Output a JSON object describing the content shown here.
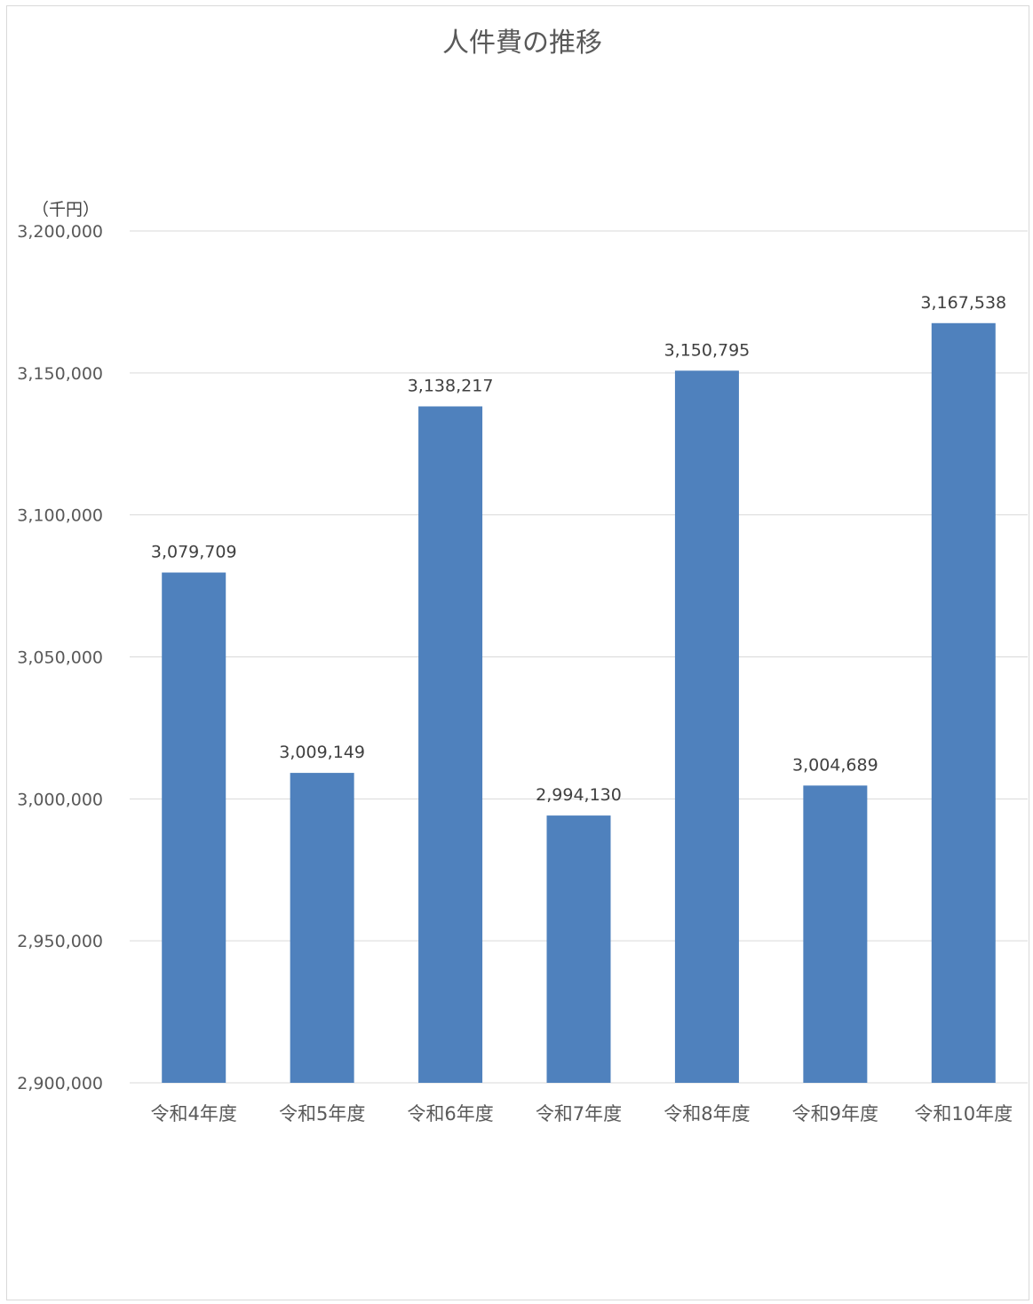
{
  "chart_data": {
    "type": "bar",
    "title": "人件費の推移",
    "ylabel": "（千円）",
    "xlabel": "",
    "categories": [
      "令和4年度",
      "令和5年度",
      "令和6年度",
      "令和7年度",
      "令和8年度",
      "令和9年度",
      "令和10年度"
    ],
    "values": [
      3079709,
      3009149,
      3138217,
      2994130,
      3150795,
      3004689,
      3167538
    ],
    "value_labels": [
      "3,079,709",
      "3,009,149",
      "3,138,217",
      "2,994,130",
      "3,150,795",
      "3,004,689",
      "3,167,538"
    ],
    "ylim": [
      2900000,
      3200000
    ],
    "yticks": [
      2900000,
      2950000,
      3000000,
      3050000,
      3100000,
      3150000,
      3200000
    ],
    "ytick_labels": [
      "2,900,000",
      "2,950,000",
      "3,000,000",
      "3,050,000",
      "3,100,000",
      "3,150,000",
      "3,200,000"
    ],
    "grid": true,
    "legend": "none",
    "bar_color": "#4f81bd",
    "grid_color": "#d9d9d9"
  }
}
